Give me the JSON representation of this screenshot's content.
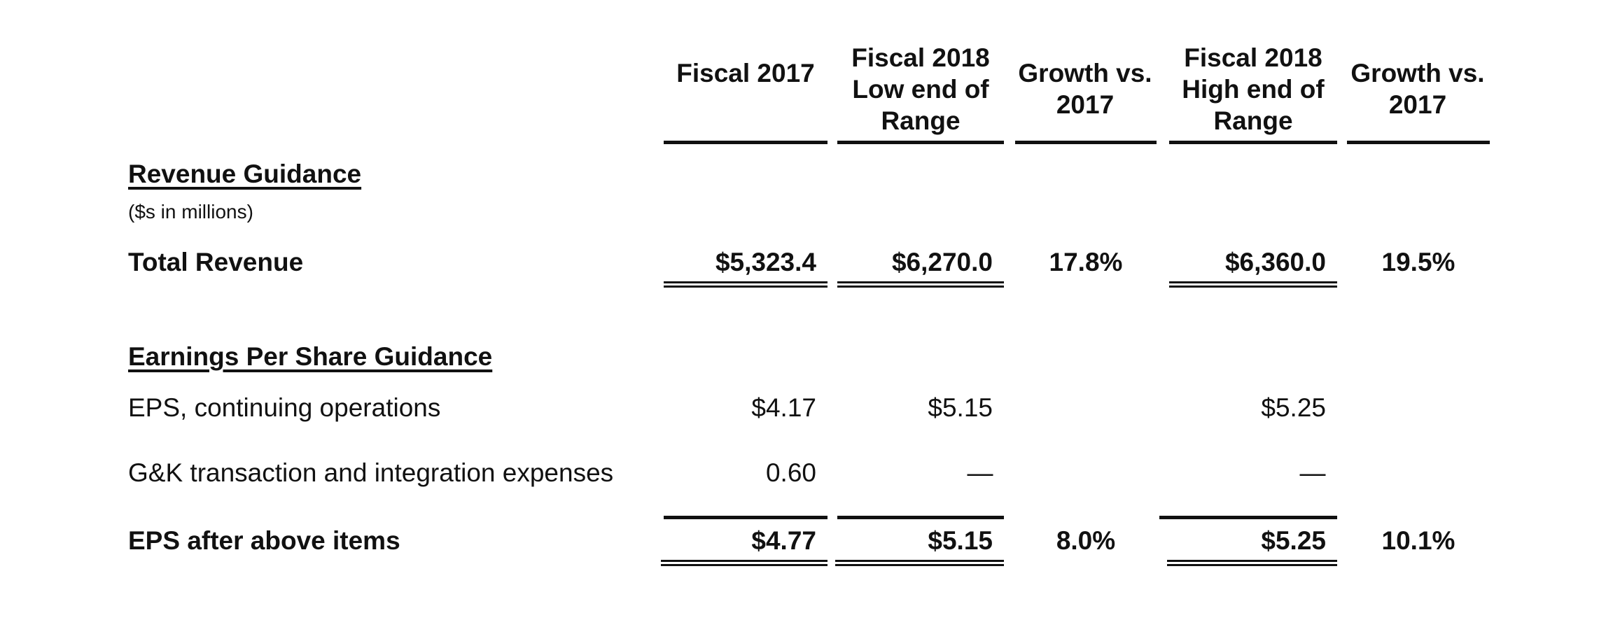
{
  "columns": {
    "fiscal_2017": "Fiscal 2017",
    "low_end": "Fiscal 2018 Low end of Range",
    "growth_low": "Growth vs. 2017",
    "high_end": "Fiscal 2018 High end of Range",
    "growth_high": "Growth vs. 2017"
  },
  "revenue": {
    "heading": "Revenue Guidance",
    "note": "($s in millions)",
    "total_label": "Total Revenue",
    "fiscal_2017": "$5,323.4",
    "low_end": "$6,270.0",
    "growth_low": "17.8%",
    "high_end": "$6,360.0",
    "growth_high": "19.5%"
  },
  "eps": {
    "heading": "Earnings Per Share Guidance",
    "continuing": {
      "label": "EPS, continuing operations",
      "fiscal_2017": "$4.17",
      "low_end": "$5.15",
      "high_end": "$5.25"
    },
    "gk": {
      "label": "G&K transaction and integration expenses",
      "fiscal_2017": "0.60",
      "low_end": "—",
      "high_end": "—"
    },
    "after": {
      "label": "EPS after above items",
      "fiscal_2017": "$4.77",
      "low_end": "$5.15",
      "growth_low": "8.0%",
      "high_end": "$5.25",
      "growth_high": "10.1%"
    }
  }
}
